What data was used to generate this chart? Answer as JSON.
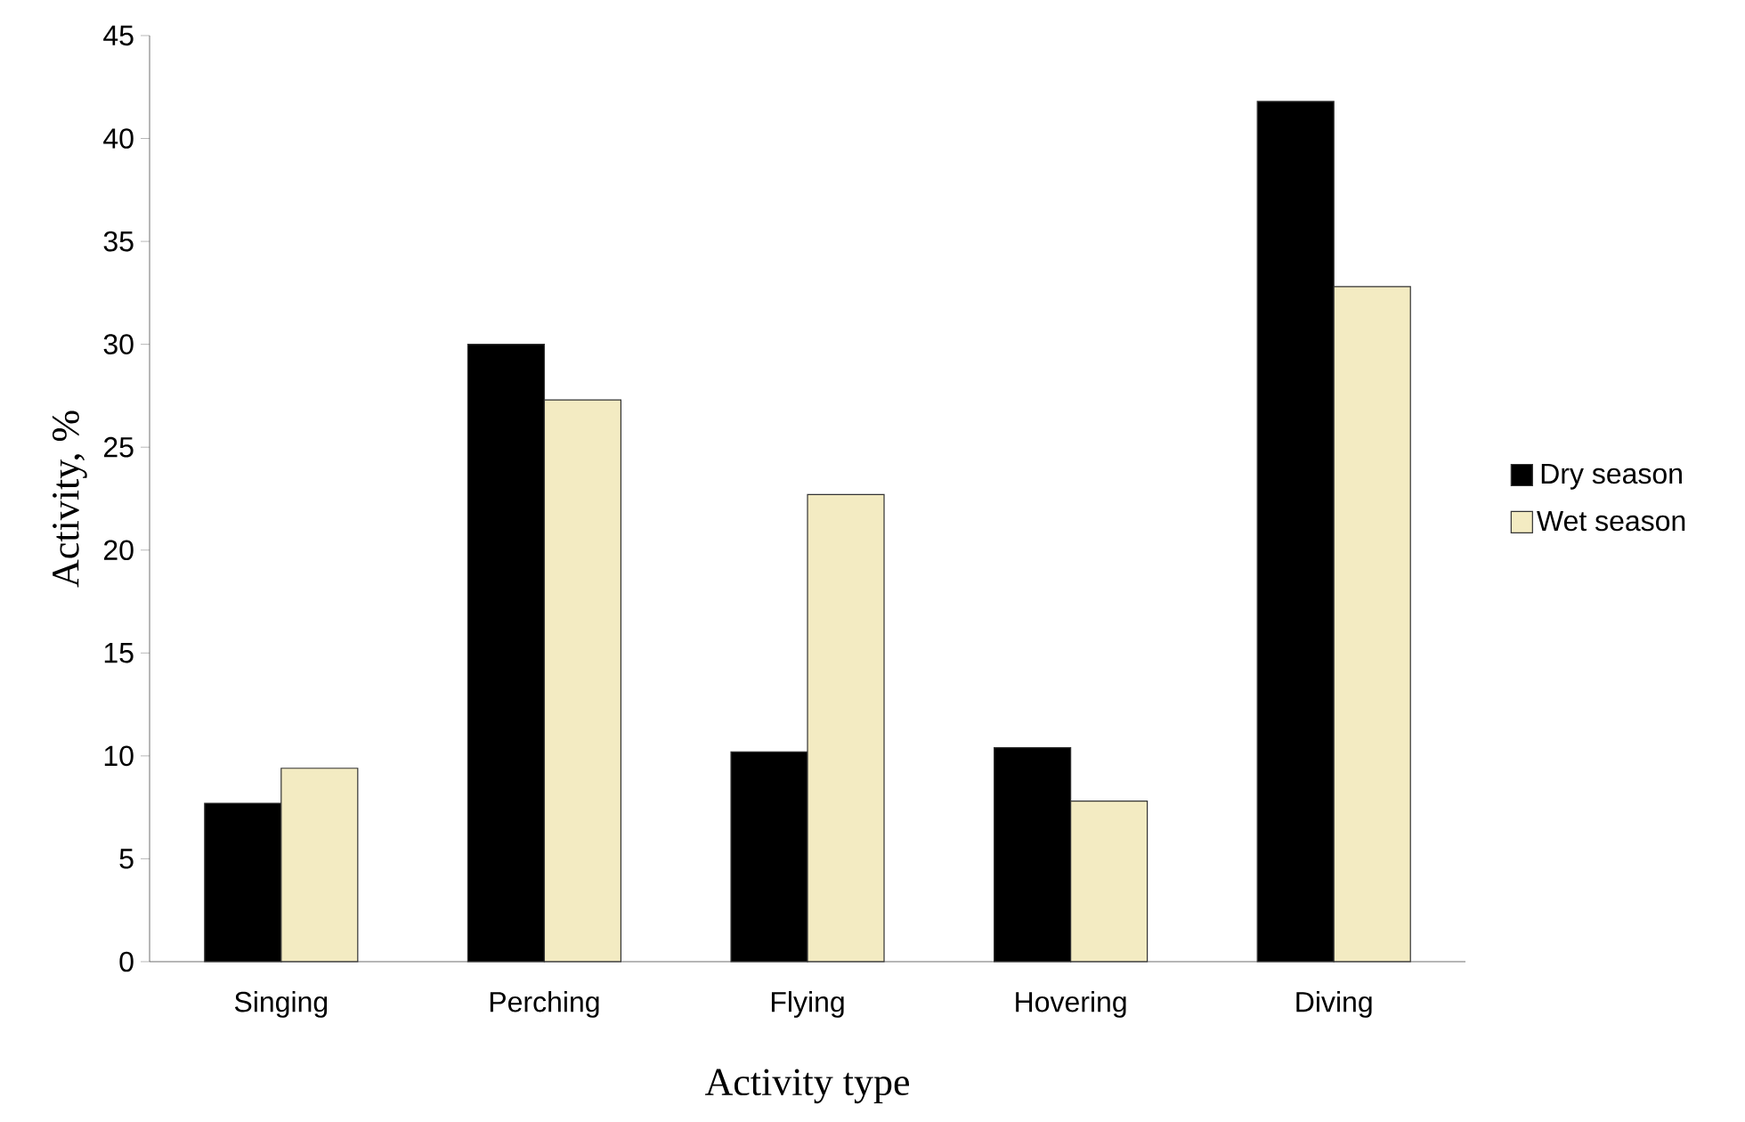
{
  "chart_data": {
    "type": "bar",
    "xlabel": "Activity type",
    "ylabel": "Activity, %",
    "categories": [
      "Singing",
      "Perching",
      "Flying",
      "Hovering",
      "Diving"
    ],
    "series": [
      {
        "name": "Dry season",
        "color": "#000000",
        "values": [
          7.7,
          30.0,
          10.2,
          10.4,
          41.8
        ]
      },
      {
        "name": "Wet season",
        "color": "#f3ebc2",
        "values": [
          9.4,
          27.3,
          22.7,
          7.8,
          32.8
        ]
      }
    ],
    "ylim": [
      0,
      45
    ],
    "yticks": [
      0,
      5,
      10,
      15,
      20,
      25,
      30,
      35,
      40,
      45
    ],
    "grid": false,
    "legend": "right"
  }
}
